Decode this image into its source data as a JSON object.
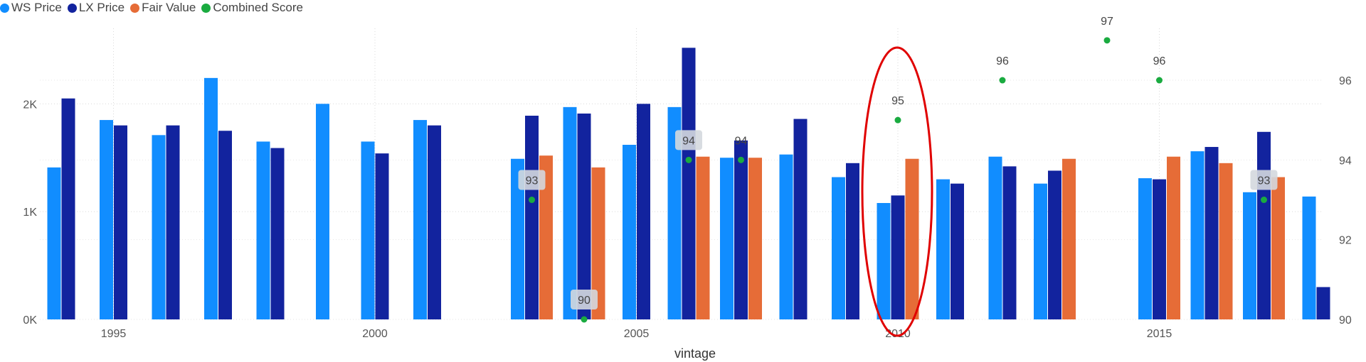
{
  "colors": {
    "ws": "#118DFF",
    "lx": "#12239E",
    "fair": "#E66C37",
    "score": "#1AAB40",
    "annotation": "#E00000",
    "label_bg": "#D4D8DE"
  },
  "legend": [
    {
      "label": "WS Price",
      "color": "#118DFF"
    },
    {
      "label": "LX Price",
      "color": "#12239E"
    },
    {
      "label": "Fair Value",
      "color": "#E66C37"
    },
    {
      "label": "Combined Score",
      "color": "#1AAB40"
    }
  ],
  "chart_data": {
    "type": "bar",
    "xlabel": "vintage",
    "ylabel": "",
    "ylim": [
      0,
      2700
    ],
    "y_ticks": [
      0,
      1000,
      2000
    ],
    "y_tick_labels": [
      "0K",
      "1K",
      "2K"
    ],
    "y2lim": [
      90,
      97.3
    ],
    "y2_ticks": [
      90,
      92,
      94,
      96
    ],
    "x_ticks": [
      1995,
      2000,
      2005,
      2010,
      2015
    ],
    "grid": true,
    "legend_position": "top-left",
    "categories": [
      1994,
      1995,
      1996,
      1997,
      1998,
      1999,
      2000,
      2001,
      2002,
      2003,
      2004,
      2005,
      2006,
      2007,
      2008,
      2009,
      2010,
      2011,
      2012,
      2013,
      2014,
      2015,
      2016,
      2017,
      2018
    ],
    "series": [
      {
        "name": "WS Price",
        "axis": "left",
        "type": "bar",
        "values": [
          1410,
          1850,
          1710,
          2240,
          1650,
          2000,
          1650,
          1850,
          null,
          1490,
          1970,
          1620,
          1970,
          1500,
          1530,
          1320,
          1080,
          1300,
          1510,
          1260,
          null,
          1310,
          1560,
          1180,
          1140
        ]
      },
      {
        "name": "LX Price",
        "axis": "left",
        "type": "bar",
        "values": [
          2050,
          1800,
          1800,
          1750,
          1590,
          null,
          1540,
          1800,
          null,
          1890,
          1910,
          2000,
          2520,
          1660,
          1860,
          1450,
          1150,
          1260,
          1420,
          1380,
          null,
          1300,
          1600,
          1740,
          300
        ]
      },
      {
        "name": "Fair Value",
        "axis": "left",
        "type": "bar",
        "values": [
          null,
          null,
          null,
          null,
          null,
          null,
          null,
          null,
          null,
          1520,
          1410,
          null,
          1510,
          1500,
          null,
          null,
          1490,
          null,
          null,
          1490,
          null,
          1510,
          1450,
          1320,
          null
        ]
      },
      {
        "name": "Combined Score",
        "axis": "right",
        "type": "scatter",
        "values": [
          null,
          null,
          null,
          null,
          null,
          null,
          null,
          null,
          null,
          93,
          90,
          null,
          94,
          94,
          null,
          null,
          95,
          null,
          96,
          null,
          97,
          96,
          null,
          93,
          null
        ]
      }
    ],
    "data_labels": [
      {
        "x": 2003,
        "text": "93",
        "highlight": true
      },
      {
        "x": 2004,
        "text": "90",
        "highlight": true
      },
      {
        "x": 2006,
        "text": "94",
        "highlight": true
      },
      {
        "x": 2007,
        "text": "94",
        "highlight": false
      },
      {
        "x": 2010,
        "text": "95",
        "highlight": false
      },
      {
        "x": 2012,
        "text": "96",
        "highlight": false
      },
      {
        "x": 2014,
        "text": "97",
        "highlight": false
      },
      {
        "x": 2015,
        "text": "96",
        "highlight": false
      },
      {
        "x": 2017,
        "text": "93",
        "highlight": true
      }
    ],
    "annotation": {
      "type": "ellipse",
      "around": 2010
    }
  }
}
